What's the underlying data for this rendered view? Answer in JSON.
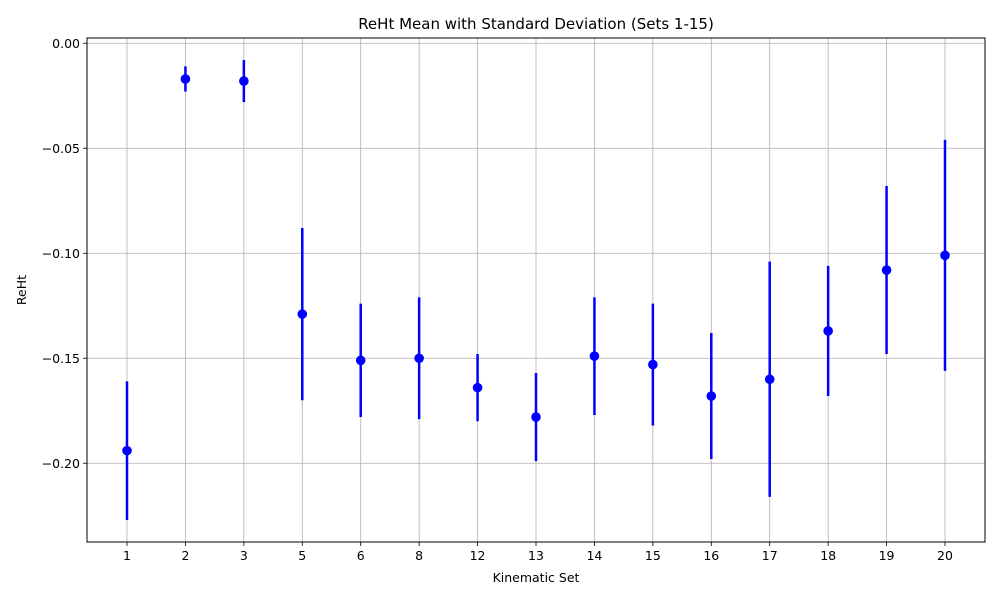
{
  "chart_data": {
    "type": "errorbar",
    "title": "ReHt Mean with Standard Deviation (Sets 1-15)",
    "xlabel": "Kinematic Set",
    "ylabel": "ReHt",
    "categories": [
      "1",
      "2",
      "3",
      "5",
      "6",
      "8",
      "12",
      "13",
      "14",
      "15",
      "16",
      "17",
      "18",
      "19",
      "20"
    ],
    "series": [
      {
        "values": [
          -0.194,
          -0.017,
          -0.018,
          -0.129,
          -0.151,
          -0.15,
          -0.164,
          -0.178,
          -0.149,
          -0.153,
          -0.168,
          -0.16,
          -0.137,
          -0.108,
          -0.101
        ],
        "std": [
          0.033,
          0.006,
          0.01,
          0.041,
          0.027,
          0.029,
          0.016,
          0.021,
          0.028,
          0.029,
          0.03,
          0.056,
          0.031,
          0.04,
          0.055
        ]
      }
    ],
    "ylim": [
      -0.2375,
      0.0025
    ],
    "yticks": [
      "0.00",
      "−0.05",
      "−0.10",
      "−0.15",
      "−0.20"
    ],
    "ytick_values": [
      0.0,
      -0.05,
      -0.1,
      -0.15,
      -0.2
    ],
    "grid": true,
    "colors": {
      "marker": "#0000ff",
      "grid": "#b0b0b0",
      "axis": "#000000"
    }
  }
}
